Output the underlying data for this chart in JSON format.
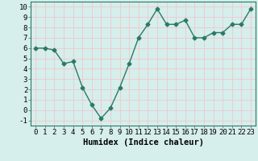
{
  "x": [
    0,
    1,
    2,
    3,
    4,
    5,
    6,
    7,
    8,
    9,
    10,
    11,
    12,
    13,
    14,
    15,
    16,
    17,
    18,
    19,
    20,
    21,
    22,
    23
  ],
  "y": [
    6.0,
    6.0,
    5.8,
    4.5,
    4.7,
    2.2,
    0.5,
    -0.8,
    0.2,
    2.2,
    4.5,
    7.0,
    8.3,
    9.8,
    8.3,
    8.3,
    8.7,
    7.0,
    7.0,
    7.5,
    7.5,
    8.3,
    8.3,
    9.8
  ],
  "line_color": "#2a7a64",
  "marker": "D",
  "marker_size": 2.5,
  "bg_color": "#d6eeec",
  "grid_color": "#f0c8c8",
  "xlabel": "Humidex (Indice chaleur)",
  "xlabel_fontsize": 7.5,
  "xlim": [
    -0.5,
    23.5
  ],
  "ylim": [
    -1.5,
    10.5
  ],
  "yticks": [
    -1,
    0,
    1,
    2,
    3,
    4,
    5,
    6,
    7,
    8,
    9,
    10
  ],
  "xticks": [
    0,
    1,
    2,
    3,
    4,
    5,
    6,
    7,
    8,
    9,
    10,
    11,
    12,
    13,
    14,
    15,
    16,
    17,
    18,
    19,
    20,
    21,
    22,
    23
  ],
  "tick_fontsize": 6.5,
  "linewidth": 1.0
}
